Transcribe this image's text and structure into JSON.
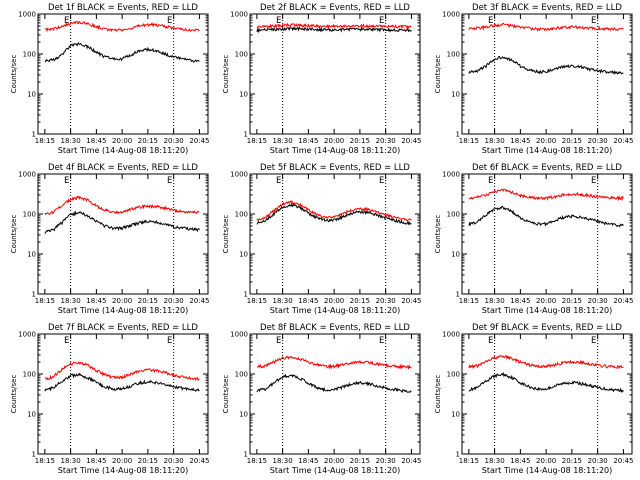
{
  "figure": {
    "xlabel": "Start Time (14-Aug-08 18:11:20)",
    "ylabel": "Counts/sec",
    "colors": {
      "events": "#000000",
      "lld": "#ff0000",
      "axes": "#000000",
      "background": "#ffffff"
    },
    "marker_label": "E"
  },
  "chart_data": [
    {
      "type": "line",
      "title": "Det 1f BLACK = Events, RED = LLD",
      "xlabel": "Start Time (14-Aug-08 18:11:20)",
      "ylabel": "Counts/sec",
      "y_scale": "log",
      "ylim": [
        1,
        1000
      ],
      "xlim": [
        "18:11",
        "20:50"
      ],
      "x_ticks": [
        "18:15",
        "18:30",
        "18:45",
        "20:00",
        "20:15",
        "20:30",
        "20:45"
      ],
      "y_ticks": [
        "1",
        "10",
        "100",
        "1000"
      ],
      "markers": [
        "18:30",
        "20:30"
      ],
      "x": [
        "18:15",
        "18:20",
        "18:25",
        "18:30",
        "18:35",
        "18:40",
        "18:45",
        "18:50",
        "18:55",
        "20:00",
        "20:05",
        "20:10",
        "20:15",
        "20:20",
        "20:25",
        "20:30",
        "20:35",
        "20:40",
        "20:45"
      ],
      "series": [
        {
          "name": "Events",
          "values": [
            68,
            72,
            95,
            160,
            180,
            150,
            110,
            85,
            75,
            75,
            95,
            120,
            130,
            120,
            100,
            85,
            75,
            68,
            65
          ]
        },
        {
          "name": "LLD",
          "values": [
            410,
            420,
            480,
            590,
            620,
            570,
            480,
            420,
            400,
            400,
            440,
            500,
            540,
            530,
            490,
            450,
            420,
            400,
            400
          ]
        }
      ]
    },
    {
      "type": "line",
      "title": "Det 2f BLACK = Events, RED = LLD",
      "xlabel": "Start Time (14-Aug-08 18:11:20)",
      "ylabel": "Counts/sec",
      "y_scale": "log",
      "ylim": [
        1,
        1000
      ],
      "xlim": [
        "18:11",
        "20:50"
      ],
      "x_ticks": [
        "18:15",
        "18:30",
        "18:45",
        "20:00",
        "20:15",
        "20:30",
        "20:45"
      ],
      "y_ticks": [
        "1",
        "10",
        "100",
        "1000"
      ],
      "markers": [
        "18:30",
        "20:30"
      ],
      "x": [
        "18:15",
        "18:20",
        "18:25",
        "18:30",
        "18:35",
        "18:40",
        "18:45",
        "18:50",
        "18:55",
        "20:00",
        "20:05",
        "20:10",
        "20:15",
        "20:20",
        "20:25",
        "20:30",
        "20:35",
        "20:40",
        "20:45"
      ],
      "series": [
        {
          "name": "Events",
          "values": [
            390,
            400,
            410,
            420,
            430,
            425,
            420,
            410,
            405,
            400,
            405,
            410,
            415,
            410,
            405,
            400,
            400,
            395,
            395
          ]
        },
        {
          "name": "LLD",
          "values": [
            470,
            480,
            500,
            520,
            530,
            520,
            510,
            500,
            490,
            490,
            495,
            500,
            505,
            500,
            495,
            490,
            485,
            480,
            480
          ]
        }
      ]
    },
    {
      "type": "line",
      "title": "Det 3f BLACK = Events, RED = LLD",
      "xlabel": "Start Time (14-Aug-08 18:11:20)",
      "ylabel": "Counts/sec",
      "y_scale": "log",
      "ylim": [
        1,
        1000
      ],
      "xlim": [
        "18:11",
        "20:50"
      ],
      "x_ticks": [
        "18:15",
        "18:30",
        "18:45",
        "20:00",
        "20:15",
        "20:30",
        "20:45"
      ],
      "y_ticks": [
        "1",
        "10",
        "100",
        "1000"
      ],
      "markers": [
        "18:30",
        "20:30"
      ],
      "x": [
        "18:15",
        "18:20",
        "18:25",
        "18:30",
        "18:35",
        "18:40",
        "18:45",
        "18:50",
        "18:55",
        "20:00",
        "20:05",
        "20:10",
        "20:15",
        "20:20",
        "20:25",
        "20:30",
        "20:35",
        "20:40",
        "20:45"
      ],
      "series": [
        {
          "name": "Events",
          "values": [
            35,
            38,
            50,
            75,
            85,
            70,
            50,
            40,
            36,
            36,
            42,
            48,
            50,
            47,
            42,
            38,
            36,
            34,
            33
          ]
        },
        {
          "name": "LLD",
          "values": [
            430,
            440,
            470,
            520,
            540,
            510,
            470,
            440,
            420,
            420,
            440,
            460,
            470,
            460,
            450,
            440,
            430,
            420,
            420
          ]
        }
      ]
    },
    {
      "type": "line",
      "title": "Det 4f BLACK = Events, RED = LLD",
      "xlabel": "Start Time (14-Aug-08 18:11:20)",
      "ylabel": "Counts/sec",
      "y_scale": "log",
      "ylim": [
        1,
        1000
      ],
      "xlim": [
        "18:11",
        "20:50"
      ],
      "x_ticks": [
        "18:15",
        "18:30",
        "18:45",
        "20:00",
        "20:15",
        "20:30",
        "20:45"
      ],
      "y_ticks": [
        "1",
        "10",
        "100",
        "1000"
      ],
      "markers": [
        "18:30",
        "20:30"
      ],
      "x": [
        "18:15",
        "18:20",
        "18:25",
        "18:30",
        "18:35",
        "18:40",
        "18:45",
        "18:50",
        "18:55",
        "20:00",
        "20:05",
        "20:10",
        "20:15",
        "20:20",
        "20:25",
        "20:30",
        "20:35",
        "20:40",
        "20:45"
      ],
      "series": [
        {
          "name": "Events",
          "values": [
            35,
            40,
            60,
            95,
            110,
            90,
            65,
            50,
            44,
            44,
            52,
            60,
            65,
            62,
            55,
            48,
            45,
            42,
            40
          ]
        },
        {
          "name": "LLD",
          "values": [
            100,
            110,
            160,
            230,
            260,
            220,
            160,
            125,
            110,
            110,
            130,
            150,
            160,
            155,
            140,
            125,
            115,
            110,
            110
          ]
        }
      ]
    },
    {
      "type": "line",
      "title": "Det 5f BLACK = Events, RED = LLD",
      "xlabel": "Start Time (14-Aug-08 18:11:20)",
      "ylabel": "Counts/sec",
      "y_scale": "log",
      "ylim": [
        1,
        1000
      ],
      "xlim": [
        "18:11",
        "20:50"
      ],
      "x_ticks": [
        "18:15",
        "18:30",
        "18:45",
        "20:00",
        "20:15",
        "20:30",
        "20:45"
      ],
      "y_ticks": [
        "1",
        "10",
        "100",
        "1000"
      ],
      "markers": [
        "18:30",
        "20:30"
      ],
      "x": [
        "18:15",
        "18:20",
        "18:25",
        "18:30",
        "18:35",
        "18:40",
        "18:45",
        "18:50",
        "18:55",
        "20:00",
        "20:05",
        "20:10",
        "20:15",
        "20:20",
        "20:25",
        "20:30",
        "20:35",
        "20:40",
        "20:45"
      ],
      "series": [
        {
          "name": "Events",
          "values": [
            60,
            70,
            100,
            150,
            170,
            145,
            105,
            80,
            70,
            70,
            85,
            105,
            115,
            110,
            95,
            80,
            70,
            62,
            58
          ]
        },
        {
          "name": "LLD",
          "values": [
            70,
            82,
            120,
            175,
            200,
            170,
            125,
            95,
            82,
            82,
            100,
            125,
            135,
            128,
            112,
            95,
            82,
            74,
            70
          ]
        }
      ]
    },
    {
      "type": "line",
      "title": "Det 6f BLACK = Events, RED = LLD",
      "xlabel": "Start Time (14-Aug-08 18:11:20)",
      "ylabel": "Counts/sec",
      "y_scale": "log",
      "ylim": [
        1,
        1000
      ],
      "xlim": [
        "18:11",
        "20:50"
      ],
      "x_ticks": [
        "18:15",
        "18:30",
        "18:45",
        "20:00",
        "20:15",
        "20:30",
        "20:45"
      ],
      "y_ticks": [
        "1",
        "10",
        "100",
        "1000"
      ],
      "markers": [
        "18:30",
        "20:30"
      ],
      "x": [
        "18:15",
        "18:20",
        "18:25",
        "18:30",
        "18:35",
        "18:40",
        "18:45",
        "18:50",
        "18:55",
        "20:00",
        "20:05",
        "20:10",
        "20:15",
        "20:20",
        "20:25",
        "20:30",
        "20:35",
        "20:40",
        "20:45"
      ],
      "series": [
        {
          "name": "Events",
          "values": [
            55,
            62,
            95,
            135,
            145,
            115,
            80,
            62,
            56,
            56,
            68,
            82,
            88,
            84,
            75,
            65,
            58,
            54,
            52
          ]
        },
        {
          "name": "LLD",
          "values": [
            250,
            260,
            300,
            370,
            390,
            350,
            290,
            260,
            250,
            250,
            270,
            300,
            320,
            310,
            290,
            270,
            260,
            250,
            250
          ]
        }
      ]
    },
    {
      "type": "line",
      "title": "Det 7f BLACK = Events, RED = LLD",
      "xlabel": "Start Time (14-Aug-08 18:11:20)",
      "ylabel": "Counts/sec",
      "y_scale": "log",
      "ylim": [
        1,
        1000
      ],
      "xlim": [
        "18:11",
        "20:50"
      ],
      "x_ticks": [
        "18:15",
        "18:30",
        "18:45",
        "20:00",
        "20:15",
        "20:30",
        "20:45"
      ],
      "y_ticks": [
        "1",
        "10",
        "100",
        "1000"
      ],
      "markers": [
        "18:30",
        "20:30"
      ],
      "x": [
        "18:15",
        "18:20",
        "18:25",
        "18:30",
        "18:35",
        "18:40",
        "18:45",
        "18:50",
        "18:55",
        "20:00",
        "20:05",
        "20:10",
        "20:15",
        "20:20",
        "20:25",
        "20:30",
        "20:35",
        "20:40",
        "20:45"
      ],
      "series": [
        {
          "name": "Events",
          "values": [
            40,
            45,
            65,
            90,
            95,
            80,
            60,
            48,
            42,
            42,
            50,
            60,
            64,
            60,
            54,
            47,
            44,
            41,
            40
          ]
        },
        {
          "name": "LLD",
          "values": [
            75,
            85,
            130,
            180,
            195,
            165,
            120,
            95,
            82,
            82,
            100,
            120,
            128,
            122,
            108,
            92,
            84,
            78,
            76
          ]
        }
      ]
    },
    {
      "type": "line",
      "title": "Det 8f BLACK = Events, RED = LLD",
      "xlabel": "Start Time (14-Aug-08 18:11:20)",
      "ylabel": "Counts/sec",
      "y_scale": "log",
      "ylim": [
        1,
        1000
      ],
      "xlim": [
        "18:11",
        "20:50"
      ],
      "x_ticks": [
        "18:15",
        "18:30",
        "18:45",
        "20:00",
        "20:15",
        "20:30",
        "20:45"
      ],
      "y_ticks": [
        "1",
        "10",
        "100",
        "1000"
      ],
      "markers": [
        "18:30",
        "20:30"
      ],
      "x": [
        "18:15",
        "18:20",
        "18:25",
        "18:30",
        "18:35",
        "18:40",
        "18:45",
        "18:50",
        "18:55",
        "20:00",
        "20:05",
        "20:10",
        "20:15",
        "20:20",
        "20:25",
        "20:30",
        "20:35",
        "20:40",
        "20:45"
      ],
      "series": [
        {
          "name": "Events",
          "values": [
            38,
            42,
            60,
            85,
            92,
            78,
            58,
            46,
            40,
            40,
            48,
            56,
            60,
            57,
            51,
            45,
            41,
            38,
            37
          ]
        },
        {
          "name": "LLD",
          "values": [
            150,
            160,
            200,
            250,
            270,
            240,
            195,
            170,
            155,
            155,
            170,
            190,
            200,
            195,
            180,
            165,
            155,
            150,
            150
          ]
        }
      ]
    },
    {
      "type": "line",
      "title": "Det 9f BLACK = Events, RED = LLD",
      "xlabel": "Start Time (14-Aug-08 18:11:20)",
      "ylabel": "Counts/sec",
      "y_scale": "log",
      "ylim": [
        1,
        1000
      ],
      "xlim": [
        "18:11",
        "20:50"
      ],
      "x_ticks": [
        "18:15",
        "18:30",
        "18:45",
        "20:00",
        "20:15",
        "20:30",
        "20:45"
      ],
      "y_ticks": [
        "1",
        "10",
        "100",
        "1000"
      ],
      "markers": [
        "18:30",
        "20:30"
      ],
      "x": [
        "18:15",
        "18:20",
        "18:25",
        "18:30",
        "18:35",
        "18:40",
        "18:45",
        "18:50",
        "18:55",
        "20:00",
        "20:05",
        "20:10",
        "20:15",
        "20:20",
        "20:25",
        "20:30",
        "20:35",
        "20:40",
        "20:45"
      ],
      "series": [
        {
          "name": "Events",
          "values": [
            40,
            45,
            65,
            90,
            98,
            82,
            60,
            48,
            42,
            42,
            50,
            58,
            62,
            58,
            52,
            46,
            42,
            40,
            39
          ]
        },
        {
          "name": "LLD",
          "values": [
            150,
            160,
            200,
            255,
            275,
            245,
            195,
            170,
            155,
            155,
            170,
            190,
            200,
            195,
            180,
            165,
            155,
            150,
            150
          ]
        }
      ]
    }
  ]
}
